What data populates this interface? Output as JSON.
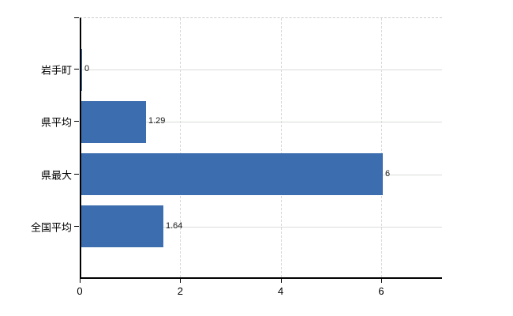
{
  "chart_data": {
    "type": "bar",
    "orientation": "horizontal",
    "title": "",
    "xlabel": "",
    "ylabel": "",
    "categories": [
      "岩手町",
      "県平均",
      "県最大",
      "全国平均"
    ],
    "values": [
      0,
      1.29,
      6,
      1.64
    ],
    "value_labels": [
      "0",
      "1.29",
      "6",
      "1.64"
    ],
    "x_tick_labels": [
      "0",
      "2",
      "4",
      "6"
    ],
    "x_tick_values": [
      0,
      2,
      4,
      6
    ],
    "xlim": [
      0,
      7.2
    ],
    "grid": true,
    "legend_position": "none",
    "bar_color": "#3c6dae",
    "grid_color_horizontal": "#d7dcd7",
    "grid_color_vertical": "#d8d4d8",
    "axis_color": "#000000",
    "label_color": "#1a1a1a",
    "background_color": "#ffffff"
  }
}
